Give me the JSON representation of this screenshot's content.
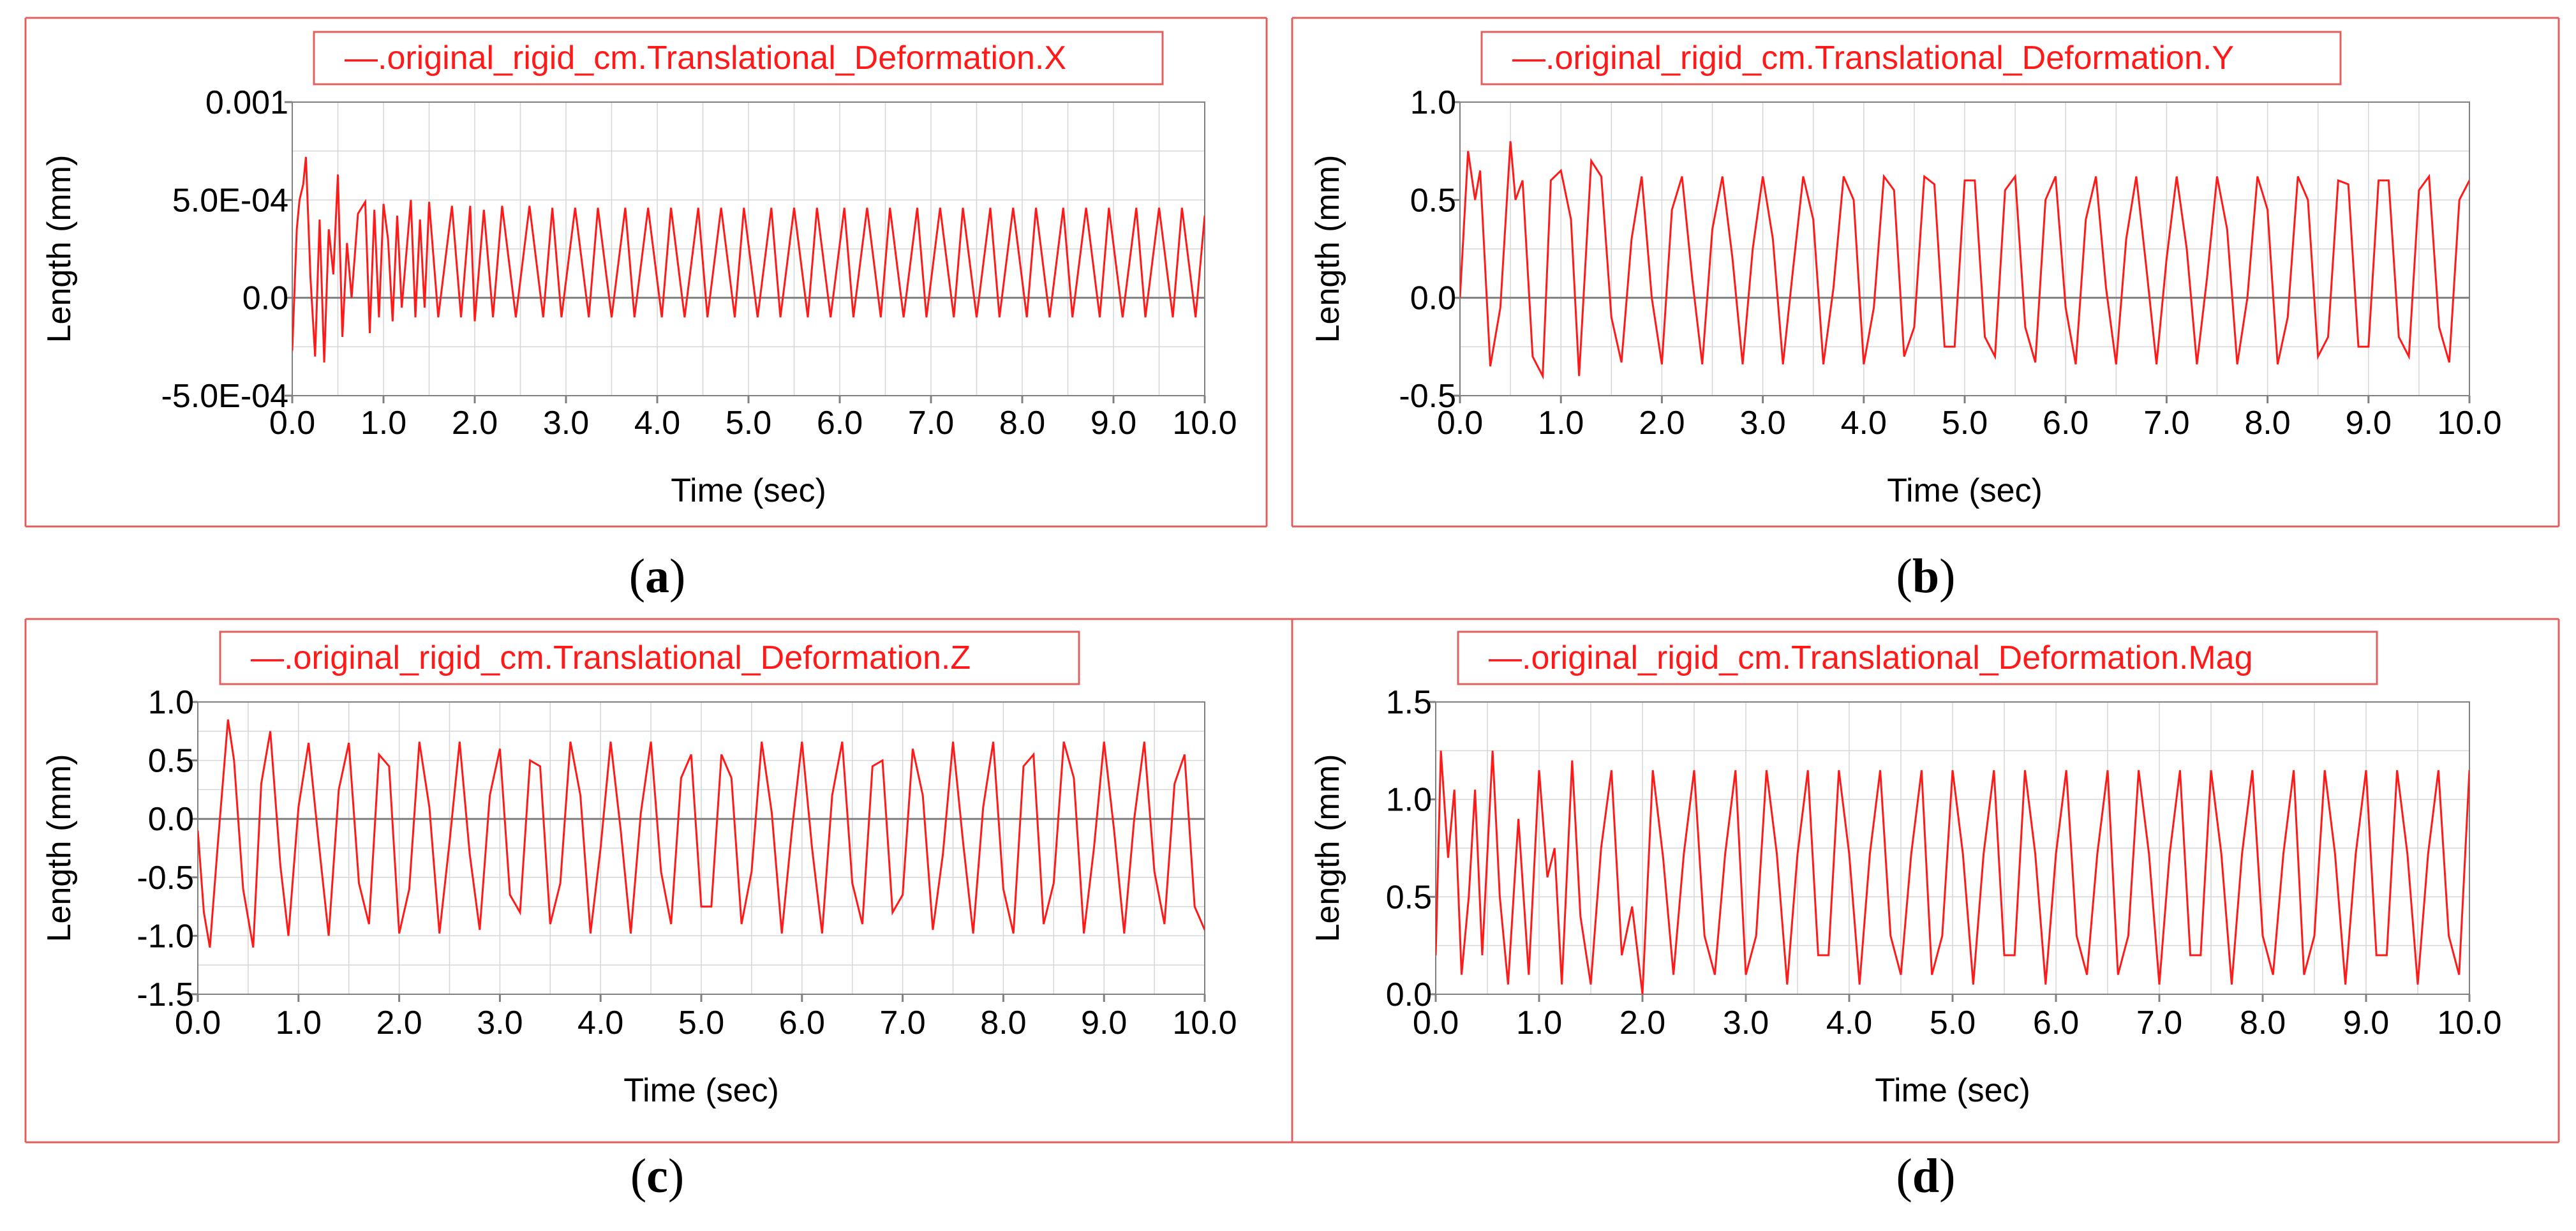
{
  "colors": {
    "series": "#ff1a1a",
    "frame": "#e06060",
    "grid": "#d6d6d6",
    "axis": "#808080",
    "text": "#000000"
  },
  "chart_data": [
    {
      "id": "a",
      "type": "line",
      "title": "",
      "legend": "—.original_rigid_cm.Translational_Deformation.X",
      "xlabel": "Time (sec)",
      "ylabel": "Length (mm)",
      "xlim": [
        0,
        10
      ],
      "ylim": [
        -0.0005,
        0.001
      ],
      "xticks": [
        0,
        1,
        2,
        3,
        4,
        5,
        6,
        7,
        8,
        9,
        10
      ],
      "xtick_labels": [
        "0.0",
        "1.0",
        "2.0",
        "3.0",
        "4.0",
        "5.0",
        "6.0",
        "7.0",
        "8.0",
        "9.0",
        "10.0"
      ],
      "yticks": [
        -0.0005,
        0,
        0.0005,
        0.001
      ],
      "ytick_labels": [
        "-5.0E-04",
        "0.0",
        "5.0E-04",
        "0.001"
      ],
      "grid": true,
      "series": [
        {
          "name": ".original_rigid_cm.Translational_Deformation.X",
          "x": [
            0.0,
            0.05,
            0.08,
            0.12,
            0.15,
            0.2,
            0.25,
            0.3,
            0.35,
            0.4,
            0.45,
            0.5,
            0.55,
            0.6,
            0.65,
            0.72,
            0.8,
            0.85,
            0.9,
            0.95,
            1.0,
            1.05,
            1.1,
            1.15,
            1.2,
            1.3,
            1.35,
            1.4,
            1.45,
            1.5,
            1.6,
            1.75,
            1.85,
            1.95,
            2.0,
            2.1,
            2.2,
            2.3,
            2.45,
            2.6,
            2.75,
            2.85,
            2.95,
            3.1,
            3.25,
            3.35,
            3.5,
            3.65,
            3.75,
            3.9,
            4.05,
            4.15,
            4.3,
            4.45,
            4.55,
            4.7,
            4.85,
            4.95,
            5.1,
            5.25,
            5.35,
            5.5,
            5.65,
            5.75,
            5.9,
            6.05,
            6.15,
            6.3,
            6.45,
            6.55,
            6.7,
            6.85,
            6.95,
            7.1,
            7.25,
            7.35,
            7.5,
            7.65,
            7.75,
            7.9,
            8.05,
            8.15,
            8.3,
            8.45,
            8.55,
            8.7,
            8.85,
            8.95,
            9.1,
            9.25,
            9.35,
            9.5,
            9.65,
            9.75,
            9.9,
            10.0
          ],
          "y": [
            -0.00027,
            0.00035,
            0.0005,
            0.00058,
            0.00072,
            0.0001,
            -0.0003,
            0.0004,
            -0.00033,
            0.00035,
            0.00012,
            0.00063,
            -0.0002,
            0.00028,
            0.0,
            0.00043,
            0.00049,
            -0.00018,
            0.00045,
            -0.0001,
            0.00048,
            0.0003,
            -0.00012,
            0.00042,
            -5e-05,
            0.0005,
            -0.0001,
            0.0004,
            -5e-05,
            0.00049,
            -0.0001,
            0.00047,
            -0.0001,
            0.00047,
            -0.00012,
            0.00045,
            -0.0001,
            0.00047,
            -0.0001,
            0.00047,
            -0.0001,
            0.00046,
            -0.0001,
            0.00046,
            -0.0001,
            0.00046,
            -0.0001,
            0.00046,
            -0.0001,
            0.00046,
            -0.0001,
            0.00046,
            -0.0001,
            0.00046,
            -0.0001,
            0.00046,
            -0.0001,
            0.00046,
            -0.0001,
            0.00046,
            -0.0001,
            0.00046,
            -0.0001,
            0.00046,
            -0.0001,
            0.00046,
            -0.0001,
            0.00046,
            -0.0001,
            0.00046,
            -0.0001,
            0.00046,
            -0.0001,
            0.00046,
            -0.0001,
            0.00046,
            -0.0001,
            0.00046,
            -0.0001,
            0.00046,
            -0.0001,
            0.00046,
            -0.0001,
            0.00046,
            -0.0001,
            0.00046,
            -0.0001,
            0.00046,
            -0.0001,
            0.00046,
            -0.0001,
            0.00046,
            -0.0001,
            0.00046,
            -0.0001,
            0.00042
          ]
        }
      ]
    },
    {
      "id": "b",
      "type": "line",
      "title": "",
      "legend": "—.original_rigid_cm.Translational_Deformation.Y",
      "xlabel": "Time (sec)",
      "ylabel": "Length (mm)",
      "xlim": [
        0,
        10
      ],
      "ylim": [
        -0.5,
        1.0
      ],
      "xticks": [
        0,
        1,
        2,
        3,
        4,
        5,
        6,
        7,
        8,
        9,
        10
      ],
      "xtick_labels": [
        "0.0",
        "1.0",
        "2.0",
        "3.0",
        "4.0",
        "5.0",
        "6.0",
        "7.0",
        "8.0",
        "9.0",
        "10.0"
      ],
      "yticks": [
        -0.5,
        0,
        0.5,
        1.0
      ],
      "ytick_labels": [
        "-0.5",
        "0.0",
        "0.5",
        "1.0"
      ],
      "grid": true,
      "series": [
        {
          "name": ".original_rigid_cm.Translational_Deformation.Y",
          "x": [
            0.0,
            0.08,
            0.15,
            0.2,
            0.3,
            0.4,
            0.5,
            0.55,
            0.62,
            0.72,
            0.82,
            0.9,
            1.0,
            1.1,
            1.18,
            1.3,
            1.4,
            1.5,
            1.6,
            1.7,
            1.8,
            1.9,
            2.0,
            2.1,
            2.2,
            2.3,
            2.4,
            2.5,
            2.6,
            2.7,
            2.8,
            2.9,
            3.0,
            3.1,
            3.2,
            3.3,
            3.4,
            3.5,
            3.6,
            3.7,
            3.8,
            3.9,
            4.0,
            4.1,
            4.2,
            4.3,
            4.4,
            4.5,
            4.6,
            4.7,
            4.8,
            4.9,
            5.0,
            5.1,
            5.2,
            5.3,
            5.4,
            5.5,
            5.6,
            5.7,
            5.8,
            5.9,
            6.0,
            6.1,
            6.2,
            6.3,
            6.4,
            6.5,
            6.6,
            6.7,
            6.8,
            6.9,
            7.0,
            7.1,
            7.2,
            7.3,
            7.4,
            7.5,
            7.6,
            7.7,
            7.8,
            7.9,
            8.0,
            8.1,
            8.2,
            8.3,
            8.4,
            8.5,
            8.6,
            8.7,
            8.8,
            8.9,
            9.0,
            9.1,
            9.2,
            9.3,
            9.4,
            9.5,
            9.6,
            9.7,
            9.8,
            9.9,
            10.0
          ],
          "y": [
            0.0,
            0.75,
            0.5,
            0.65,
            -0.35,
            -0.05,
            0.8,
            0.5,
            0.6,
            -0.3,
            -0.4,
            0.6,
            0.65,
            0.4,
            -0.4,
            0.7,
            0.62,
            -0.1,
            -0.33,
            0.3,
            0.62,
            0.0,
            -0.34,
            0.45,
            0.62,
            0.1,
            -0.34,
            0.35,
            0.62,
            0.2,
            -0.34,
            0.25,
            0.62,
            0.3,
            -0.34,
            0.15,
            0.62,
            0.4,
            -0.34,
            0.05,
            0.62,
            0.5,
            -0.34,
            -0.05,
            0.62,
            0.55,
            -0.3,
            -0.15,
            0.62,
            0.58,
            -0.25,
            -0.25,
            0.6,
            0.6,
            -0.2,
            -0.3,
            0.55,
            0.62,
            -0.15,
            -0.33,
            0.5,
            0.62,
            -0.05,
            -0.34,
            0.4,
            0.62,
            0.05,
            -0.34,
            0.3,
            0.62,
            0.15,
            -0.34,
            0.2,
            0.62,
            0.25,
            -0.34,
            0.1,
            0.62,
            0.35,
            -0.34,
            0.0,
            0.62,
            0.45,
            -0.34,
            -0.1,
            0.62,
            0.5,
            -0.3,
            -0.2,
            0.6,
            0.58,
            -0.25,
            -0.25,
            0.6,
            0.6,
            -0.2,
            -0.3,
            0.55,
            0.62,
            -0.15,
            -0.33,
            0.5,
            0.6
          ]
        }
      ]
    },
    {
      "id": "c",
      "type": "line",
      "title": "",
      "legend": "—.original_rigid_cm.Translational_Deformation.Z",
      "xlabel": "Time (sec)",
      "ylabel": "Length (mm)",
      "xlim": [
        0,
        10
      ],
      "ylim": [
        -1.5,
        1.0
      ],
      "xticks": [
        0,
        1,
        2,
        3,
        4,
        5,
        6,
        7,
        8,
        9,
        10
      ],
      "xtick_labels": [
        "0.0",
        "1.0",
        "2.0",
        "3.0",
        "4.0",
        "5.0",
        "6.0",
        "7.0",
        "8.0",
        "9.0",
        "10.0"
      ],
      "yticks": [
        -1.5,
        -1.0,
        -0.5,
        0,
        0.5,
        1.0
      ],
      "ytick_labels": [
        "-1.5",
        "-1.0",
        "-0.5",
        "0.0",
        "0.5",
        "1.0"
      ],
      "grid": true,
      "series": [
        {
          "name": ".original_rigid_cm.Translational_Deformation.Z",
          "x": [
            0.0,
            0.06,
            0.12,
            0.2,
            0.3,
            0.36,
            0.45,
            0.55,
            0.63,
            0.72,
            0.82,
            0.9,
            1.0,
            1.1,
            1.2,
            1.3,
            1.4,
            1.5,
            1.6,
            1.7,
            1.8,
            1.9,
            2.0,
            2.1,
            2.2,
            2.3,
            2.4,
            2.5,
            2.6,
            2.7,
            2.8,
            2.9,
            3.0,
            3.1,
            3.2,
            3.3,
            3.4,
            3.5,
            3.6,
            3.7,
            3.8,
            3.9,
            4.0,
            4.1,
            4.2,
            4.3,
            4.4,
            4.5,
            4.6,
            4.7,
            4.8,
            4.9,
            5.0,
            5.1,
            5.2,
            5.3,
            5.4,
            5.5,
            5.6,
            5.7,
            5.8,
            5.9,
            6.0,
            6.1,
            6.2,
            6.3,
            6.4,
            6.5,
            6.6,
            6.7,
            6.8,
            6.9,
            7.0,
            7.1,
            7.2,
            7.3,
            7.4,
            7.5,
            7.6,
            7.7,
            7.8,
            7.9,
            8.0,
            8.1,
            8.2,
            8.3,
            8.4,
            8.5,
            8.6,
            8.7,
            8.8,
            8.9,
            9.0,
            9.1,
            9.2,
            9.3,
            9.4,
            9.5,
            9.6,
            9.7,
            9.8,
            9.9,
            10.0
          ],
          "y": [
            -0.1,
            -0.8,
            -1.1,
            -0.2,
            0.85,
            0.5,
            -0.6,
            -1.1,
            0.3,
            0.75,
            -0.4,
            -1.0,
            0.1,
            0.65,
            -0.2,
            -1.0,
            0.25,
            0.65,
            -0.55,
            -0.9,
            0.55,
            0.45,
            -0.98,
            -0.6,
            0.66,
            0.1,
            -0.98,
            -0.2,
            0.66,
            -0.3,
            -0.95,
            0.2,
            0.6,
            -0.65,
            -0.8,
            0.5,
            0.45,
            -0.9,
            -0.55,
            0.66,
            0.2,
            -0.98,
            -0.25,
            0.66,
            -0.1,
            -0.98,
            0.05,
            0.66,
            -0.45,
            -0.9,
            0.35,
            0.55,
            -0.75,
            -0.75,
            0.55,
            0.35,
            -0.9,
            -0.45,
            0.66,
            0.05,
            -0.98,
            -0.1,
            0.66,
            -0.25,
            -0.98,
            0.2,
            0.66,
            -0.55,
            -0.9,
            0.45,
            0.5,
            -0.8,
            -0.65,
            0.6,
            0.2,
            -0.95,
            -0.3,
            0.66,
            -0.2,
            -0.98,
            0.1,
            0.66,
            -0.6,
            -0.98,
            0.45,
            0.55,
            -0.9,
            -0.55,
            0.66,
            0.35,
            -0.98,
            -0.25,
            0.66,
            -0.1,
            -0.98,
            0.0,
            0.66,
            -0.45,
            -0.9,
            0.3,
            0.55,
            -0.75,
            -0.95
          ]
        }
      ]
    },
    {
      "id": "d",
      "type": "line",
      "title": "",
      "legend": "—.original_rigid_cm.Translational_Deformation.Mag",
      "xlabel": "Time (sec)",
      "ylabel": "Length (mm)",
      "xlim": [
        0,
        10
      ],
      "ylim": [
        0,
        1.5
      ],
      "xticks": [
        0,
        1,
        2,
        3,
        4,
        5,
        6,
        7,
        8,
        9,
        10
      ],
      "xtick_labels": [
        "0.0",
        "1.0",
        "2.0",
        "3.0",
        "4.0",
        "5.0",
        "6.0",
        "7.0",
        "8.0",
        "9.0",
        "10.0"
      ],
      "yticks": [
        0,
        0.5,
        1.0,
        1.5
      ],
      "ytick_labels": [
        "0.0",
        "0.5",
        "1.0",
        "1.5"
      ],
      "grid": true,
      "series": [
        {
          "name": ".original_rigid_cm.Translational_Deformation.Mag",
          "x": [
            0.0,
            0.05,
            0.12,
            0.18,
            0.25,
            0.32,
            0.38,
            0.45,
            0.55,
            0.62,
            0.7,
            0.8,
            0.9,
            1.0,
            1.08,
            1.15,
            1.22,
            1.32,
            1.4,
            1.5,
            1.6,
            1.7,
            1.8,
            1.9,
            2.0,
            2.1,
            2.2,
            2.3,
            2.4,
            2.5,
            2.6,
            2.7,
            2.8,
            2.9,
            3.0,
            3.1,
            3.2,
            3.3,
            3.4,
            3.5,
            3.6,
            3.7,
            3.8,
            3.9,
            4.0,
            4.1,
            4.2,
            4.3,
            4.4,
            4.5,
            4.6,
            4.7,
            4.8,
            4.9,
            5.0,
            5.1,
            5.2,
            5.3,
            5.4,
            5.5,
            5.6,
            5.7,
            5.8,
            5.9,
            6.0,
            6.1,
            6.2,
            6.3,
            6.4,
            6.5,
            6.6,
            6.7,
            6.8,
            6.9,
            7.0,
            7.1,
            7.2,
            7.3,
            7.4,
            7.5,
            7.6,
            7.7,
            7.8,
            7.9,
            8.0,
            8.1,
            8.2,
            8.3,
            8.4,
            8.5,
            8.6,
            8.7,
            8.8,
            8.9,
            9.0,
            9.1,
            9.2,
            9.3,
            9.4,
            9.5,
            9.6,
            9.7,
            9.8,
            9.9,
            10.0
          ],
          "y": [
            0.2,
            1.25,
            0.7,
            1.05,
            0.1,
            0.5,
            1.05,
            0.2,
            1.25,
            0.5,
            0.05,
            0.9,
            0.1,
            1.15,
            0.6,
            0.75,
            0.05,
            1.2,
            0.4,
            0.05,
            0.75,
            1.15,
            0.2,
            0.45,
            0.0,
            1.15,
            0.7,
            0.1,
            0.72,
            1.15,
            0.3,
            0.1,
            0.72,
            1.15,
            0.1,
            0.3,
            1.15,
            0.72,
            0.05,
            0.72,
            1.15,
            0.2,
            0.2,
            1.15,
            0.72,
            0.05,
            0.72,
            1.15,
            0.3,
            0.1,
            0.72,
            1.15,
            0.1,
            0.3,
            1.15,
            0.72,
            0.05,
            0.72,
            1.15,
            0.2,
            0.2,
            1.15,
            0.72,
            0.05,
            0.72,
            1.15,
            0.3,
            0.1,
            0.72,
            1.15,
            0.1,
            0.3,
            1.15,
            0.72,
            0.05,
            0.72,
            1.15,
            0.2,
            0.2,
            1.15,
            0.72,
            0.05,
            0.72,
            1.15,
            0.3,
            0.1,
            0.72,
            1.15,
            0.1,
            0.3,
            1.15,
            0.72,
            0.05,
            0.72,
            1.15,
            0.2,
            0.2,
            1.15,
            0.72,
            0.05,
            0.72,
            1.15,
            0.3,
            0.1,
            1.15
          ]
        }
      ]
    }
  ],
  "captions": [
    {
      "open": "(",
      "letter": "a",
      "close": ")"
    },
    {
      "open": "(",
      "letter": "b",
      "close": ")"
    },
    {
      "open": "(",
      "letter": "c",
      "close": ")"
    },
    {
      "open": "(",
      "letter": "d",
      "close": ")"
    }
  ]
}
